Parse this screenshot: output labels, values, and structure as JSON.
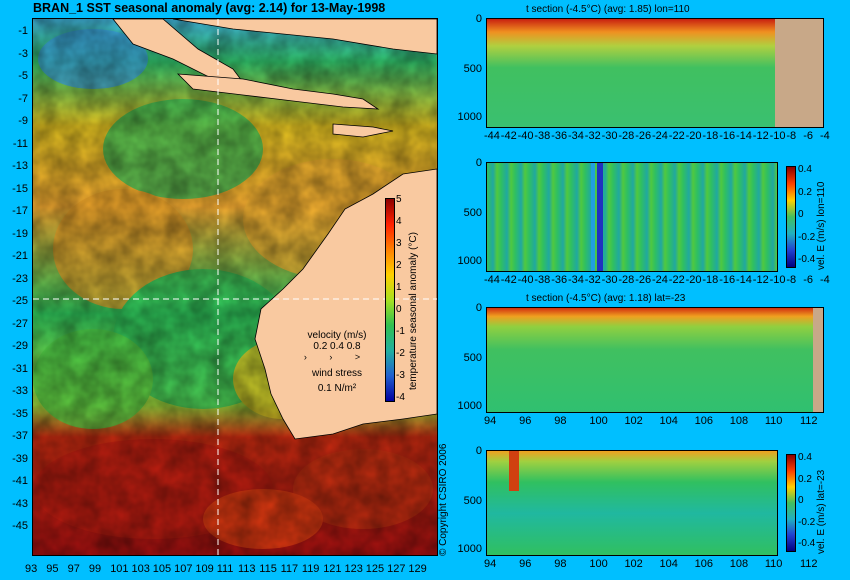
{
  "map": {
    "title": "BRAN_1 SST seasonal anomaly (avg: 2.14) for 13-May-1998",
    "lat_ticks": [
      "-1",
      "-3",
      "-5",
      "-7",
      "-9",
      "-11",
      "-13",
      "-15",
      "-17",
      "-19",
      "-21",
      "-23",
      "-25",
      "-27",
      "-29",
      "-31",
      "-33",
      "-35",
      "-37",
      "-39",
      "-41",
      "-43",
      "-45"
    ],
    "lon_ticks": [
      "93",
      "95",
      "97",
      "99",
      "101",
      "103",
      "105",
      "107",
      "109",
      "111",
      "113",
      "115",
      "117",
      "119",
      "121",
      "123",
      "125",
      "127",
      "129"
    ],
    "colorbar": {
      "ticks": [
        "5",
        "4",
        "3",
        "2",
        "1",
        "0",
        "-1",
        "-2",
        "-3",
        "-4"
      ],
      "label": "temperature seasonal anomaly (°C)"
    },
    "velocity_legend": {
      "title": "velocity (m/s)",
      "values": "0.2 0.4 0.8"
    },
    "wind_legend": {
      "title": "wind stress",
      "value": "0.1 N/m²"
    },
    "copyright": "© Copyright CSIRO 2006"
  },
  "panels": [
    {
      "title": "t section (-4.5°C) (avg: 1.85) lon=110",
      "x_ticks": [
        "-44",
        "-42",
        "-40",
        "-38",
        "-36",
        "-34",
        "-32",
        "-30",
        "-28",
        "-26",
        "-24",
        "-22",
        "-20",
        "-18",
        "-16",
        "-14",
        "-12",
        "-10",
        "-8",
        "-6",
        "-4"
      ],
      "y_ticks": [
        "0",
        "500",
        "1000"
      ]
    },
    {
      "title": "",
      "x_ticks": [
        "-44",
        "-42",
        "-40",
        "-38",
        "-36",
        "-34",
        "-32",
        "-30",
        "-28",
        "-26",
        "-24",
        "-22",
        "-20",
        "-18",
        "-16",
        "-14",
        "-12",
        "-10",
        "-8",
        "-6",
        "-4"
      ],
      "y_ticks": [
        "0",
        "500",
        "1000"
      ],
      "colorbar_ticks": [
        "0.4",
        "0.2",
        "0",
        "-0.2",
        "-0.4"
      ],
      "colorbar_label": "vel. E (m/s) lon=110"
    },
    {
      "title": "t section (-4.5°C) (avg: 1.18) lat=-23",
      "x_ticks": [
        "94",
        "96",
        "98",
        "100",
        "102",
        "104",
        "106",
        "108",
        "110",
        "112"
      ],
      "y_ticks": [
        "0",
        "500",
        "1000"
      ]
    },
    {
      "title": "",
      "x_ticks": [
        "94",
        "96",
        "98",
        "100",
        "102",
        "104",
        "106",
        "108",
        "110",
        "112"
      ],
      "y_ticks": [
        "0",
        "500",
        "1000"
      ],
      "colorbar_ticks": [
        "0.4",
        "0.2",
        "0",
        "-0.2",
        "-0.4"
      ],
      "colorbar_label": "vel. E (m/s) lat=-23"
    }
  ],
  "colors": {
    "background": "#00bfff",
    "land": "#f9c9a0",
    "land_dark": "#c8a888"
  }
}
